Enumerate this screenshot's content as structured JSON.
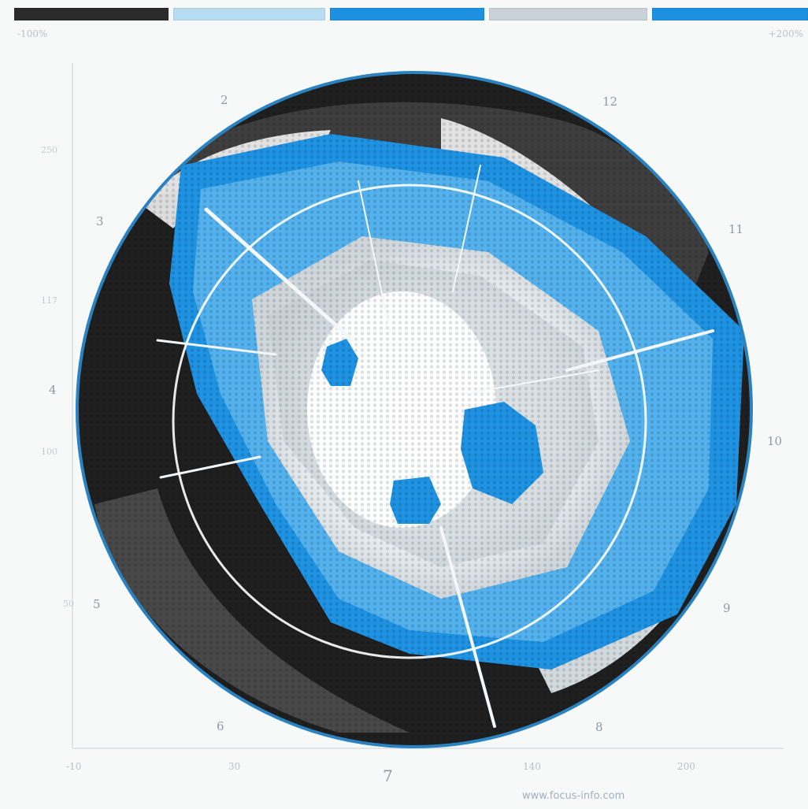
{
  "legend": {
    "segments": [
      {
        "color": "#2b2b2b"
      },
      {
        "color": "#b8dcf2"
      },
      {
        "color": "#1e90e0"
      },
      {
        "color": "#c9d2d8"
      },
      {
        "color": "#1e90e0"
      }
    ],
    "label_left": "-100%",
    "label_right": "+200%"
  },
  "positions": [
    "2",
    "12",
    "3",
    "11",
    "4",
    "10",
    "5",
    "9",
    "6",
    "8",
    "7"
  ],
  "side_ticks": [
    "250",
    "117",
    "4",
    "100",
    "50"
  ],
  "x_ticks": [
    "-10",
    "30",
    "140",
    "200"
  ],
  "watermark": "www.focus-info.com",
  "colors": {
    "dark": "#1f1f1f",
    "light": "#dcecf7",
    "blue": "#1f93e3",
    "white": "#ffffff",
    "grey": "#a9b3ba",
    "rim": "#2a83c0"
  }
}
